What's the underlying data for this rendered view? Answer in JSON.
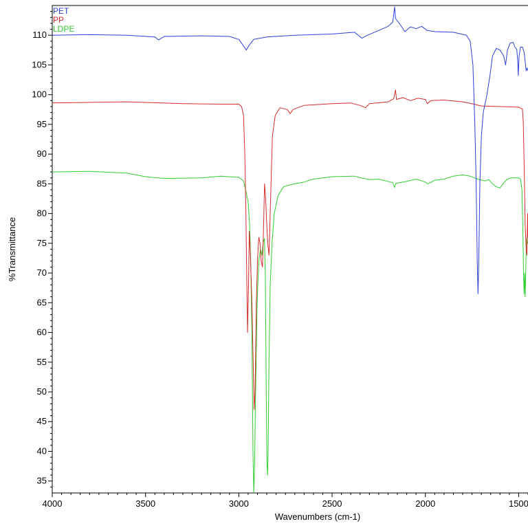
{
  "chart_data": {
    "type": "line",
    "title": "",
    "xlabel": "Wavenumbers (cm-1)",
    "ylabel": "%Transmittance",
    "xlim": [
      4000,
      1450
    ],
    "ylim": [
      33,
      115
    ],
    "x_reversed": true,
    "xticks": [
      4000,
      3500,
      3000,
      2500,
      2000,
      1500
    ],
    "yticks": [
      35,
      40,
      45,
      50,
      55,
      60,
      65,
      70,
      75,
      80,
      85,
      90,
      95,
      100,
      105,
      110
    ],
    "grid": false,
    "legend_position": "top-left",
    "series": [
      {
        "name": "PET",
        "color": "#2b3fd6",
        "points": [
          [
            4000,
            110.0
          ],
          [
            3800,
            110.1
          ],
          [
            3600,
            110.0
          ],
          [
            3450,
            109.7
          ],
          [
            3430,
            109.2
          ],
          [
            3400,
            109.8
          ],
          [
            3200,
            109.9
          ],
          [
            3050,
            109.8
          ],
          [
            3000,
            109.3
          ],
          [
            2975,
            108.2
          ],
          [
            2960,
            107.5
          ],
          [
            2945,
            108.3
          ],
          [
            2920,
            109.3
          ],
          [
            2850,
            109.7
          ],
          [
            2700,
            110.0
          ],
          [
            2500,
            110.2
          ],
          [
            2380,
            110.5
          ],
          [
            2340,
            109.5
          ],
          [
            2310,
            110.0
          ],
          [
            2250,
            110.8
          ],
          [
            2200,
            111.5
          ],
          [
            2175,
            112.2
          ],
          [
            2165,
            114.8
          ],
          [
            2160,
            112.8
          ],
          [
            2140,
            112.0
          ],
          [
            2110,
            110.6
          ],
          [
            2080,
            111.4
          ],
          [
            2050,
            111.1
          ],
          [
            2020,
            111.5
          ],
          [
            1990,
            110.8
          ],
          [
            1950,
            110.6
          ],
          [
            1850,
            110.5
          ],
          [
            1780,
            110.0
          ],
          [
            1760,
            109.0
          ],
          [
            1745,
            105.0
          ],
          [
            1735,
            95.0
          ],
          [
            1728,
            85.0
          ],
          [
            1722,
            72.0
          ],
          [
            1718,
            66.5
          ],
          [
            1714,
            72.0
          ],
          [
            1708,
            85.0
          ],
          [
            1700,
            93.0
          ],
          [
            1690,
            97.0
          ],
          [
            1670,
            100.0
          ],
          [
            1655,
            103.0
          ],
          [
            1640,
            106.5
          ],
          [
            1620,
            107.8
          ],
          [
            1600,
            107.5
          ],
          [
            1580,
            106.5
          ],
          [
            1570,
            105.0
          ],
          [
            1560,
            107.5
          ],
          [
            1545,
            108.7
          ],
          [
            1530,
            108.8
          ],
          [
            1520,
            108.0
          ],
          [
            1510,
            107.6
          ],
          [
            1505,
            105.5
          ],
          [
            1502,
            103.2
          ],
          [
            1498,
            106.5
          ],
          [
            1490,
            108.0
          ],
          [
            1480,
            108.0
          ],
          [
            1470,
            107.0
          ],
          [
            1465,
            105.5
          ],
          [
            1460,
            104.0
          ],
          [
            1455,
            104.5
          ],
          [
            1450,
            104.0
          ]
        ]
      },
      {
        "name": "PP",
        "color": "#d42a2a",
        "points": [
          [
            4000,
            98.6
          ],
          [
            3800,
            98.7
          ],
          [
            3600,
            98.8
          ],
          [
            3300,
            98.5
          ],
          [
            3100,
            98.4
          ],
          [
            3000,
            98.4
          ],
          [
            2985,
            98.0
          ],
          [
            2975,
            96.5
          ],
          [
            2968,
            90.0
          ],
          [
            2962,
            80.0
          ],
          [
            2958,
            70.0
          ],
          [
            2953,
            60.0
          ],
          [
            2948,
            68.0
          ],
          [
            2944,
            77.0
          ],
          [
            2938,
            73.0
          ],
          [
            2930,
            65.0
          ],
          [
            2923,
            55.0
          ],
          [
            2918,
            47.0
          ],
          [
            2913,
            50.0
          ],
          [
            2906,
            65.0
          ],
          [
            2900,
            72.0
          ],
          [
            2893,
            76.0
          ],
          [
            2886,
            75.0
          ],
          [
            2880,
            72.0
          ],
          [
            2873,
            71.0
          ],
          [
            2868,
            77.0
          ],
          [
            2862,
            85.0
          ],
          [
            2857,
            83.0
          ],
          [
            2850,
            78.0
          ],
          [
            2845,
            75.0
          ],
          [
            2838,
            73.0
          ],
          [
            2830,
            82.0
          ],
          [
            2820,
            93.0
          ],
          [
            2805,
            96.5
          ],
          [
            2780,
            97.8
          ],
          [
            2740,
            97.5
          ],
          [
            2725,
            96.8
          ],
          [
            2710,
            97.5
          ],
          [
            2650,
            98.2
          ],
          [
            2500,
            98.5
          ],
          [
            2400,
            98.6
          ],
          [
            2350,
            98.2
          ],
          [
            2320,
            97.8
          ],
          [
            2300,
            98.5
          ],
          [
            2200,
            98.8
          ],
          [
            2170,
            99.3
          ],
          [
            2160,
            100.8
          ],
          [
            2155,
            99.2
          ],
          [
            2120,
            99.5
          ],
          [
            2080,
            99.0
          ],
          [
            2040,
            99.4
          ],
          [
            2000,
            99.2
          ],
          [
            1990,
            98.5
          ],
          [
            1970,
            99.0
          ],
          [
            1900,
            99.1
          ],
          [
            1800,
            98.8
          ],
          [
            1740,
            98.4
          ],
          [
            1700,
            98.1
          ],
          [
            1600,
            98.0
          ],
          [
            1500,
            97.9
          ],
          [
            1480,
            97.6
          ],
          [
            1475,
            95.0
          ],
          [
            1470,
            87.0
          ],
          [
            1465,
            78.0
          ],
          [
            1460,
            74.0
          ],
          [
            1456,
            73.0
          ],
          [
            1452,
            80.0
          ],
          [
            1450,
            76.0
          ]
        ]
      },
      {
        "name": "LDPE",
        "color": "#2fcf2f",
        "points": [
          [
            4000,
            87.0
          ],
          [
            3800,
            87.1
          ],
          [
            3600,
            86.8
          ],
          [
            3500,
            86.2
          ],
          [
            3400,
            85.9
          ],
          [
            3200,
            86.0
          ],
          [
            3100,
            86.3
          ],
          [
            3000,
            86.1
          ],
          [
            2975,
            85.5
          ],
          [
            2960,
            83.5
          ],
          [
            2950,
            82.0
          ],
          [
            2942,
            78.0
          ],
          [
            2936,
            72.0
          ],
          [
            2930,
            60.0
          ],
          [
            2924,
            40.0
          ],
          [
            2920,
            33.0
          ],
          [
            2915,
            38.0
          ],
          [
            2910,
            50.0
          ],
          [
            2902,
            65.0
          ],
          [
            2893,
            72.0
          ],
          [
            2884,
            74.0
          ],
          [
            2876,
            73.0
          ],
          [
            2870,
            75.0
          ],
          [
            2863,
            75.8
          ],
          [
            2858,
            70.0
          ],
          [
            2853,
            50.0
          ],
          [
            2849,
            38.0
          ],
          [
            2846,
            36.0
          ],
          [
            2843,
            40.0
          ],
          [
            2838,
            55.0
          ],
          [
            2832,
            68.0
          ],
          [
            2822,
            75.0
          ],
          [
            2810,
            80.0
          ],
          [
            2790,
            83.0
          ],
          [
            2760,
            84.5
          ],
          [
            2730,
            84.8
          ],
          [
            2700,
            85.0
          ],
          [
            2650,
            85.3
          ],
          [
            2600,
            85.8
          ],
          [
            2500,
            86.2
          ],
          [
            2380,
            86.3
          ],
          [
            2330,
            85.9
          ],
          [
            2300,
            85.7
          ],
          [
            2250,
            85.8
          ],
          [
            2175,
            85.2
          ],
          [
            2165,
            84.4
          ],
          [
            2158,
            85.1
          ],
          [
            2100,
            85.4
          ],
          [
            2050,
            85.8
          ],
          [
            2000,
            85.3
          ],
          [
            1990,
            85.0
          ],
          [
            1980,
            85.1
          ],
          [
            1950,
            85.6
          ],
          [
            1900,
            85.8
          ],
          [
            1850,
            86.3
          ],
          [
            1800,
            86.5
          ],
          [
            1760,
            86.3
          ],
          [
            1720,
            85.8
          ],
          [
            1680,
            85.5
          ],
          [
            1660,
            85.7
          ],
          [
            1640,
            85.0
          ],
          [
            1620,
            84.5
          ],
          [
            1600,
            84.3
          ],
          [
            1580,
            85.2
          ],
          [
            1560,
            85.8
          ],
          [
            1540,
            86.0
          ],
          [
            1500,
            86.0
          ],
          [
            1490,
            85.8
          ],
          [
            1482,
            84.0
          ],
          [
            1478,
            78.0
          ],
          [
            1474,
            70.0
          ],
          [
            1471,
            66.5
          ],
          [
            1468,
            70.0
          ],
          [
            1465,
            66.0
          ],
          [
            1462,
            70.0
          ],
          [
            1459,
            75.0
          ],
          [
            1456,
            76.0
          ],
          [
            1452,
            75.0
          ],
          [
            1450,
            75.0
          ]
        ]
      }
    ]
  }
}
